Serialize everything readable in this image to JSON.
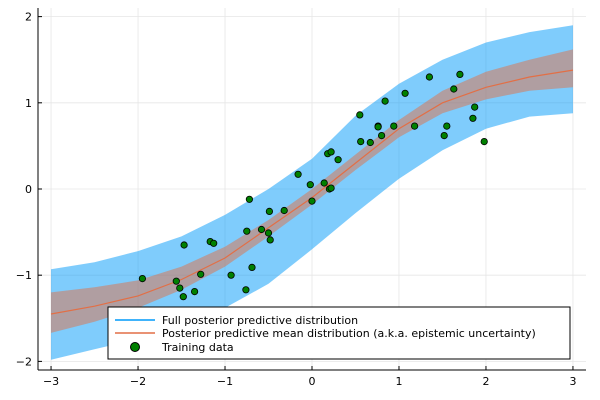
{
  "chart_data": {
    "type": "line",
    "title": "",
    "xlabel": "",
    "ylabel": "",
    "xlim": [
      -3.15,
      3.15
    ],
    "ylim": [
      -2.1,
      2.1
    ],
    "grid": true,
    "legend_placement": "bottom-right",
    "x_ticks": [
      -3,
      -2,
      -1,
      0,
      1,
      2,
      3
    ],
    "y_ticks": [
      -2,
      -1,
      0,
      1,
      2
    ],
    "x_tick_labels": [
      "−3",
      "−2",
      "−1",
      "0",
      "1",
      "2",
      "3"
    ],
    "y_tick_labels": [
      "−2",
      "−1",
      "0",
      "1",
      "2"
    ],
    "series": [
      {
        "name": "Full posterior predictive distribution",
        "kind": "band",
        "color": "#009AFA",
        "opacity": 0.5,
        "x": [
          -3,
          -2.5,
          -2,
          -1.5,
          -1,
          -0.5,
          0,
          0.5,
          1,
          1.5,
          2,
          2.5,
          3
        ],
        "lower": [
          -1.98,
          -1.86,
          -1.74,
          -1.6,
          -1.38,
          -1.1,
          -0.7,
          -0.28,
          0.12,
          0.45,
          0.7,
          0.84,
          0.88
        ],
        "upper": [
          -0.93,
          -0.85,
          -0.72,
          -0.55,
          -0.3,
          0.0,
          0.35,
          0.85,
          1.22,
          1.5,
          1.7,
          1.82,
          1.9
        ]
      },
      {
        "name": "Posterior predictive mean distribution (a.k.a. epistemic uncertainty)",
        "kind": "line_with_band",
        "color": "#E26F46",
        "band_opacity": 0.5,
        "x": [
          -3,
          -2.5,
          -2,
          -1.5,
          -1,
          -0.5,
          0,
          0.5,
          1,
          1.5,
          2,
          2.5,
          3
        ],
        "mean": [
          -1.45,
          -1.36,
          -1.24,
          -1.05,
          -0.8,
          -0.45,
          -0.1,
          0.3,
          0.7,
          1.0,
          1.18,
          1.3,
          1.38
        ],
        "lower": [
          -1.67,
          -1.54,
          -1.38,
          -1.17,
          -0.9,
          -0.55,
          -0.18,
          0.22,
          0.6,
          0.88,
          1.04,
          1.14,
          1.18
        ],
        "upper": [
          -1.2,
          -1.14,
          -1.06,
          -0.9,
          -0.67,
          -0.36,
          0.0,
          0.4,
          0.8,
          1.14,
          1.36,
          1.5,
          1.62
        ]
      },
      {
        "name": "Training data",
        "kind": "scatter",
        "color": "#008000",
        "points": [
          [
            -1.95,
            -1.04
          ],
          [
            -1.52,
            -1.15
          ],
          [
            -1.48,
            -1.25
          ],
          [
            -1.56,
            -1.07
          ],
          [
            -1.47,
            -0.65
          ],
          [
            -1.35,
            -1.19
          ],
          [
            -1.28,
            -0.99
          ],
          [
            -1.17,
            -0.61
          ],
          [
            -1.13,
            -0.63
          ],
          [
            -0.93,
            -1.0
          ],
          [
            -0.76,
            -1.17
          ],
          [
            -0.75,
            -0.49
          ],
          [
            -0.72,
            -0.12
          ],
          [
            -0.69,
            -0.91
          ],
          [
            -0.58,
            -0.47
          ],
          [
            -0.5,
            -0.51
          ],
          [
            -0.48,
            -0.59
          ],
          [
            -0.49,
            -0.26
          ],
          [
            -0.32,
            -0.25
          ],
          [
            -0.16,
            0.17
          ],
          [
            -0.02,
            0.05
          ],
          [
            0.0,
            -0.14
          ],
          [
            0.14,
            0.07
          ],
          [
            0.2,
            0.0
          ],
          [
            0.18,
            0.41
          ],
          [
            0.22,
            0.43
          ],
          [
            0.22,
            0.01
          ],
          [
            0.3,
            0.34
          ],
          [
            0.55,
            0.86
          ],
          [
            0.56,
            0.55
          ],
          [
            0.67,
            0.54
          ],
          [
            0.76,
            0.73
          ],
          [
            0.76,
            0.72
          ],
          [
            0.8,
            0.62
          ],
          [
            0.84,
            1.02
          ],
          [
            0.94,
            0.73
          ],
          [
            1.07,
            1.11
          ],
          [
            1.18,
            0.73
          ],
          [
            1.35,
            1.3
          ],
          [
            1.52,
            0.62
          ],
          [
            1.55,
            0.73
          ],
          [
            1.63,
            1.16
          ],
          [
            1.7,
            1.33
          ],
          [
            1.85,
            0.82
          ],
          [
            1.87,
            0.95
          ],
          [
            1.98,
            0.55
          ]
        ]
      }
    ]
  }
}
